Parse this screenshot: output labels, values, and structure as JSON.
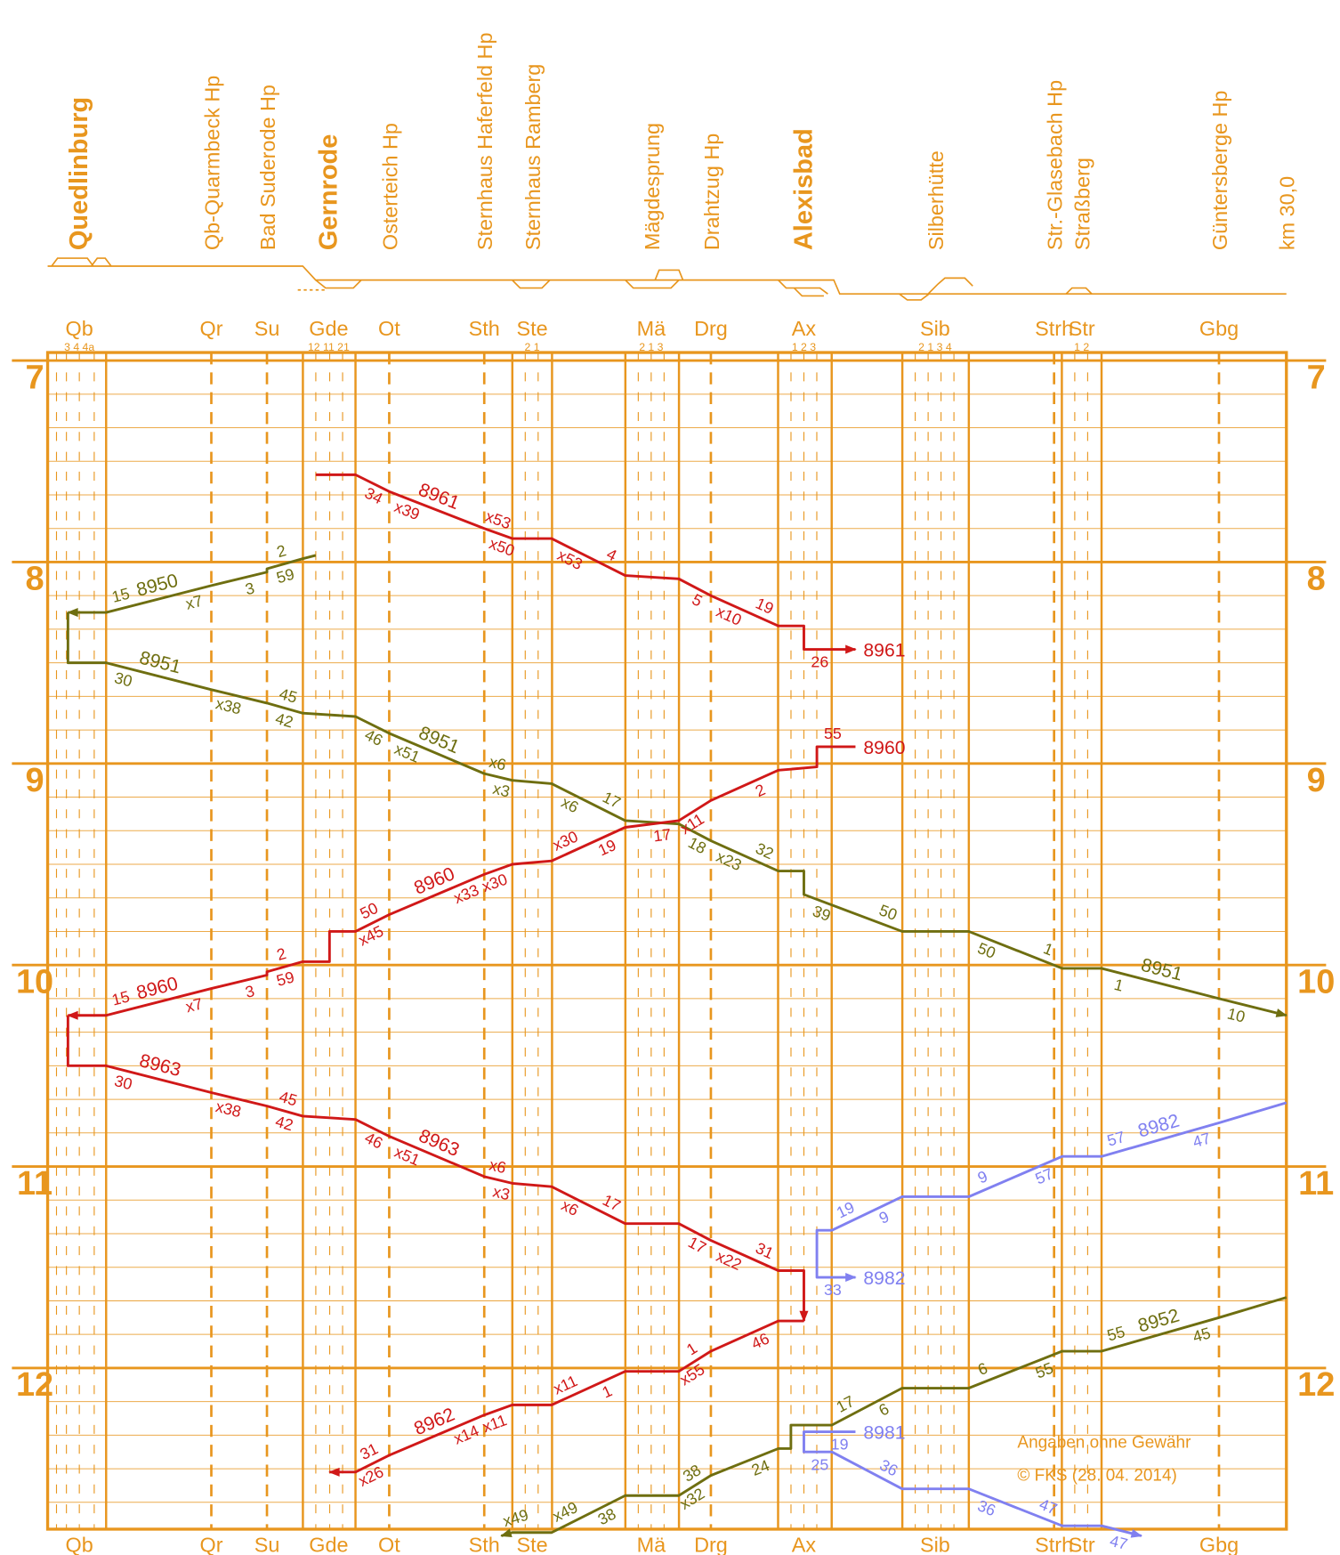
{
  "chart_data": {
    "type": "train-graph",
    "frame_color": "#e8961e",
    "xlim": [
      -0.5,
      30
    ],
    "ylim": [
      6.96,
      12.8
    ],
    "yticks": [
      7,
      8,
      9,
      10,
      11,
      12
    ],
    "grid": true,
    "minor_grid_minutes": 10,
    "end_label": "km 30,0",
    "stations": [
      {
        "name": "Quedlinburg",
        "abbr": "Qb",
        "km": 0.28,
        "tracks": "3 4 4a",
        "bold": true,
        "halt": false
      },
      {
        "name": "Qb-Quarmbeck Hp",
        "abbr": "Qr",
        "km": 3.53,
        "bold": false,
        "halt": true
      },
      {
        "name": "Bad Suderode Hp",
        "abbr": "Su",
        "km": 4.9,
        "bold": false,
        "halt": true
      },
      {
        "name": "Gernrode",
        "abbr": "Gde",
        "km": 6.42,
        "tracks": "12 11 21",
        "bold": true,
        "halt": false
      },
      {
        "name": "Osterteich Hp",
        "abbr": "Ot",
        "km": 7.91,
        "bold": false,
        "halt": true
      },
      {
        "name": "Sternhaus Haferfeld Hp",
        "abbr": "Sth",
        "km": 10.25,
        "bold": false,
        "halt": true
      },
      {
        "name": "Sternhaus Ramberg",
        "abbr": "Ste",
        "km": 11.43,
        "tracks": "2 1",
        "bold": false,
        "halt": false
      },
      {
        "name": "Mägdesprung",
        "abbr": "Mä",
        "km": 14.36,
        "tracks": "2 1 3",
        "bold": false,
        "halt": false
      },
      {
        "name": "Drahtzug Hp",
        "abbr": "Drg",
        "km": 15.83,
        "bold": false,
        "halt": true
      },
      {
        "name": "Alexisbad",
        "abbr": "Ax",
        "km": 18.12,
        "tracks": "1 2 3",
        "bold": true,
        "halt": false
      },
      {
        "name": "Silberhütte",
        "abbr": "Sib",
        "km": 21.35,
        "tracks": "2 1 3 4",
        "bold": false,
        "halt": false
      },
      {
        "name": "Str.-Glasebach Hp",
        "abbr": "Strh",
        "km": 24.28,
        "bold": false,
        "halt": true
      },
      {
        "name": "Straßberg",
        "abbr": "Str",
        "km": 24.96,
        "tracks": "1 2",
        "bold": false,
        "halt": false
      },
      {
        "name": "Güntersberge Hp",
        "abbr": "Gbg",
        "km": 28.34,
        "bold": false,
        "halt": true
      }
    ],
    "series": [
      {
        "name": "8950",
        "color": "#6e6e10",
        "x": [
          6.1,
          5.78,
          4.9,
          4.9,
          3.53,
          0.94,
          0
        ],
        "values": [
          7.9667,
          7.9833,
          8.0333,
          8.05,
          8.1167,
          8.25,
          8.25
        ],
        "value_labels": [
          null,
          "59",
          "2",
          "3",
          "x7",
          "15",
          null
        ]
      },
      {
        "name": "8951",
        "color": "#6e6e10",
        "x": [
          0,
          0,
          0.94,
          3.53,
          4.9,
          5.78,
          7.08,
          7.91,
          10.25,
          10.94,
          11.91,
          13.72,
          15.04,
          15.83,
          17.49,
          18.12,
          18.12,
          20.54,
          22.18,
          24.48,
          25.45,
          28.34,
          30.0
        ],
        "values": [
          8.25,
          8.5,
          8.5,
          8.6333,
          8.7,
          8.75,
          8.7667,
          8.85,
          9.05,
          9.0833,
          9.1,
          9.2833,
          9.3,
          9.3833,
          9.5333,
          9.5333,
          9.65,
          9.8333,
          9.8333,
          10.0167,
          10.0167,
          10.1667,
          10.25
        ],
        "value_labels": [
          null,
          null,
          "30",
          "x38",
          "42",
          "45",
          "46",
          "x51",
          "x3",
          "x6",
          "x6",
          "17",
          "18",
          "x23",
          "32",
          null,
          "39",
          "50",
          "50",
          "1",
          "1",
          "10",
          null
        ]
      },
      {
        "name": "8961",
        "color": "#d01818",
        "x": [
          6.1,
          7.08,
          7.91,
          10.25,
          10.94,
          11.91,
          13.72,
          15.04,
          15.83,
          17.49,
          18.12,
          18.12,
          19.39
        ],
        "values": [
          7.5667,
          7.5667,
          7.65,
          7.8333,
          7.8833,
          7.8833,
          8.0667,
          8.0833,
          8.1667,
          8.3167,
          8.3167,
          8.4333,
          8.4333
        ],
        "value_labels": [
          null,
          "34",
          "x39",
          "x50",
          "x53",
          "x53",
          "4",
          "5",
          "x10",
          "19",
          null,
          "26",
          null
        ]
      },
      {
        "name": "8960",
        "color": "#d01818",
        "x": [
          19.39,
          18.44,
          18.44,
          17.49,
          15.83,
          15.04,
          13.72,
          11.91,
          10.94,
          10.25,
          7.91,
          7.08,
          6.44,
          6.44,
          5.78,
          4.9,
          4.9,
          3.53,
          0.94,
          0
        ],
        "values": [
          8.9167,
          8.9167,
          9.0167,
          9.0333,
          9.1833,
          9.2833,
          9.3167,
          9.4833,
          9.5,
          9.55,
          9.75,
          9.8333,
          9.8333,
          9.9833,
          9.9833,
          10.0333,
          10.05,
          10.1167,
          10.25,
          10.25
        ],
        "value_labels": [
          null,
          "55",
          null,
          "2",
          "x11",
          "17",
          "19",
          "x30",
          "x30",
          "x33",
          "x45",
          "50",
          null,
          null,
          "59",
          "2",
          "3",
          "x7",
          "15",
          null
        ]
      },
      {
        "name": "8963",
        "color": "#d01818",
        "x": [
          0,
          0,
          0.94,
          3.53,
          4.9,
          5.78,
          7.08,
          7.91,
          10.25,
          10.94,
          11.91,
          13.72,
          15.04,
          15.83,
          17.49,
          18.12,
          18.12
        ],
        "values": [
          10.25,
          10.5,
          10.5,
          10.6333,
          10.7,
          10.75,
          10.7667,
          10.85,
          11.05,
          11.0833,
          11.1,
          11.2833,
          11.2833,
          11.3667,
          11.5167,
          11.5167,
          11.7667
        ],
        "value_labels": [
          null,
          null,
          "30",
          "x38",
          "42",
          "45",
          "46",
          "x51",
          "x3",
          "x6",
          "x6",
          "17",
          "17",
          "x22",
          "31",
          null,
          null
        ]
      },
      {
        "name": "8962",
        "color": "#d01818",
        "x": [
          18.12,
          17.49,
          15.83,
          15.04,
          13.72,
          11.91,
          10.94,
          10.25,
          7.91,
          7.08,
          6.44
        ],
        "values": [
          11.7667,
          11.7667,
          11.9167,
          12.0167,
          12.0167,
          12.1833,
          12.1833,
          12.2333,
          12.4333,
          12.5167,
          12.5167
        ],
        "value_labels": [
          null,
          "46",
          "x55",
          "1",
          "1",
          "x11",
          "x11",
          "x14",
          "x26",
          "31",
          null
        ]
      },
      {
        "name": "8982",
        "color": "#8080f0",
        "x": [
          30.0,
          28.34,
          25.45,
          24.48,
          22.18,
          20.54,
          18.81,
          18.44,
          18.44,
          19.39
        ],
        "values": [
          10.6833,
          10.7833,
          10.95,
          10.95,
          11.15,
          11.15,
          11.3167,
          11.3167,
          11.55,
          11.55
        ],
        "value_labels": [
          null,
          "47",
          "57",
          "57",
          "9",
          "9",
          "19",
          null,
          "33",
          null
        ]
      },
      {
        "name": "8952",
        "color": "#6e6e10",
        "x": [
          30.0,
          28.34,
          25.45,
          24.48,
          22.18,
          20.54,
          18.81,
          17.8,
          17.8,
          17.49,
          15.83,
          15.04,
          13.72,
          11.91,
          10.94,
          10.67
        ],
        "values": [
          11.65,
          11.75,
          11.9167,
          11.9167,
          12.1,
          12.1,
          12.2833,
          12.2833,
          12.4,
          12.4,
          12.5333,
          12.6333,
          12.6333,
          12.8167,
          12.8167,
          12.8333
        ],
        "value_labels": [
          null,
          "45",
          "55",
          "55",
          "6",
          "6",
          "17",
          null,
          null,
          "24",
          "x32",
          "38",
          "38",
          "x49",
          null,
          "x49"
        ]
      },
      {
        "name": "8981",
        "color": "#8080f0",
        "x": [
          19.39,
          18.12,
          18.12,
          18.81,
          20.54,
          22.18,
          24.48,
          25.45,
          26.43
        ],
        "values": [
          12.3167,
          12.3167,
          12.4167,
          12.4167,
          12.6,
          12.6,
          12.7833,
          12.7833,
          12.8333
        ],
        "value_labels": [
          "19",
          null,
          "25",
          null,
          "36",
          "36",
          "47",
          "47",
          null
        ]
      }
    ],
    "notes": [
      "Angaben ohne Gewähr",
      "© FKS (28. 04. 2014)"
    ]
  }
}
